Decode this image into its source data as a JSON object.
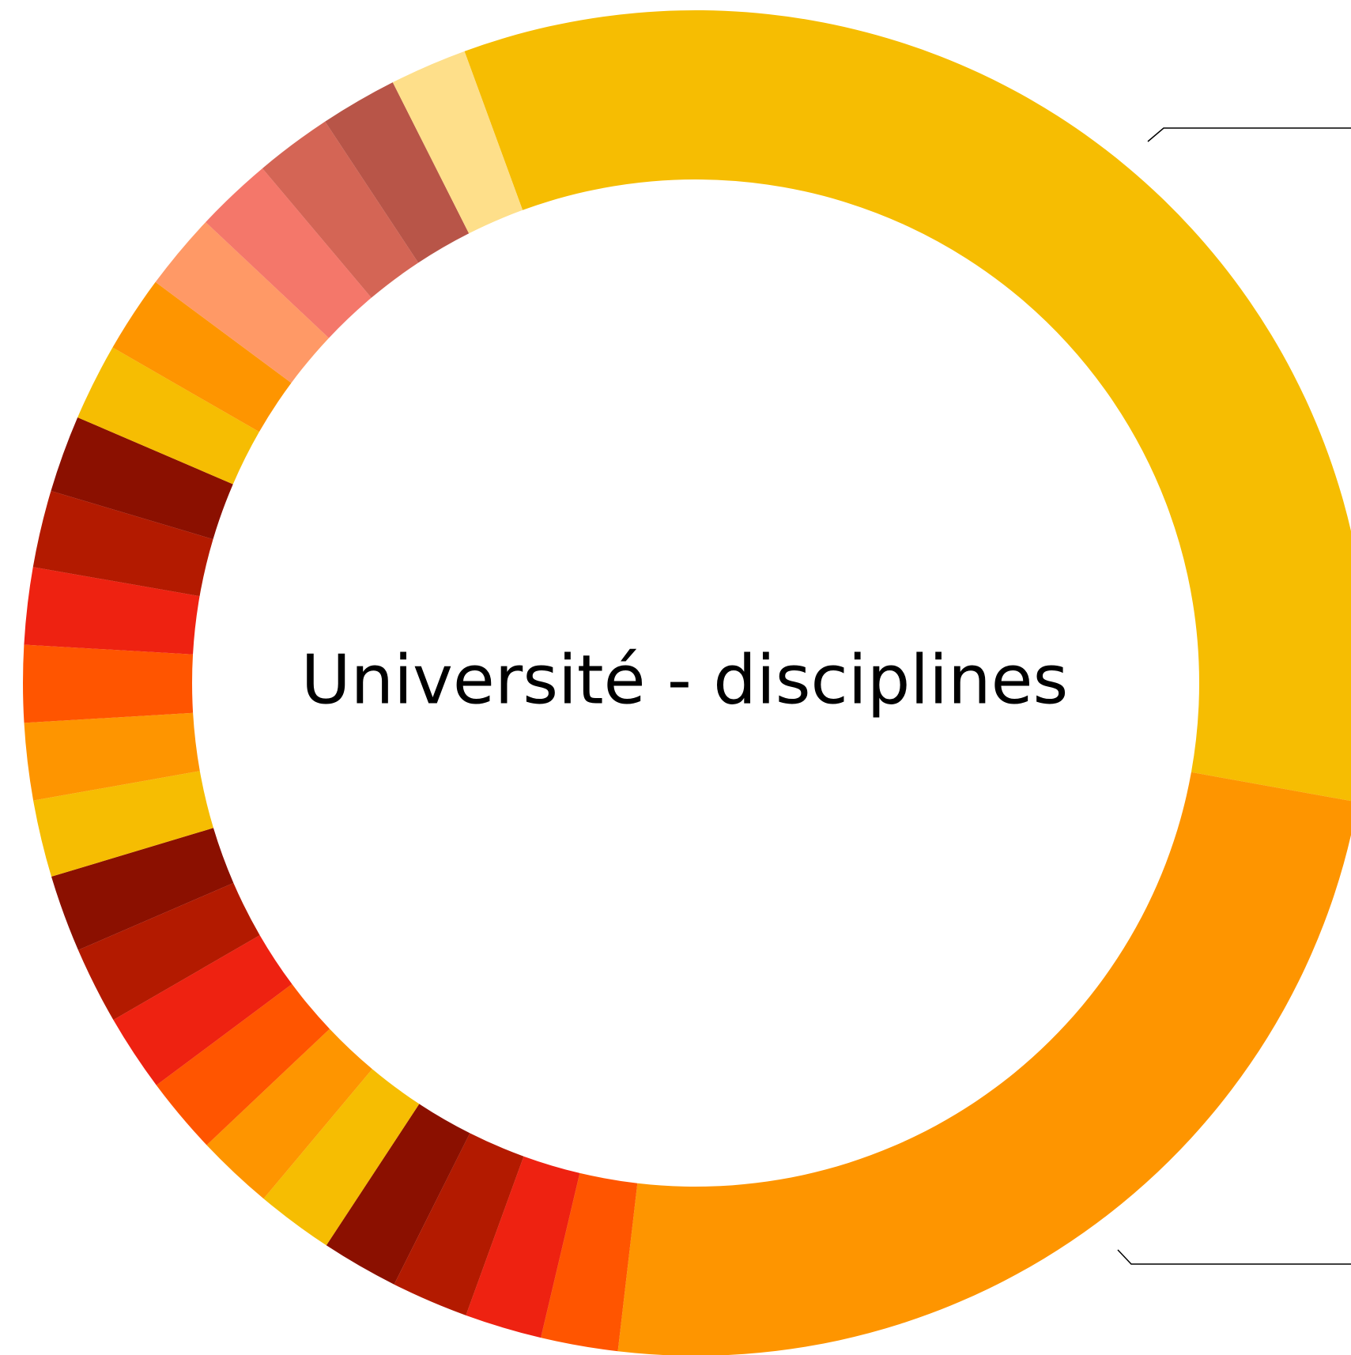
{
  "chart_data": {
    "type": "donut",
    "title": "Université - disciplines",
    "values": [
      33.4,
      24.0,
      1.85,
      1.85,
      1.85,
      1.85,
      1.85,
      1.85,
      1.85,
      1.85,
      1.85,
      1.85,
      1.85,
      1.85,
      1.85,
      1.85,
      1.85,
      1.85,
      1.85,
      1.85,
      1.85,
      1.85,
      1.85,
      1.85,
      1.85
    ],
    "colors": [
      "#f6bd02",
      "#fe9500",
      "#ff5500",
      "#ee2211",
      "#b31a00",
      "#8b1000",
      "#f6bd02",
      "#fe9500",
      "#ff5500",
      "#ee2211",
      "#b31a00",
      "#8b1000",
      "#f6bd02",
      "#fe9500",
      "#ff5500",
      "#ee2211",
      "#b31a00",
      "#8b1000",
      "#f6bd02",
      "#fe9500",
      "#ff9966",
      "#f4776a",
      "#d46555",
      "#b85548",
      "#fedf8a"
    ]
  }
}
